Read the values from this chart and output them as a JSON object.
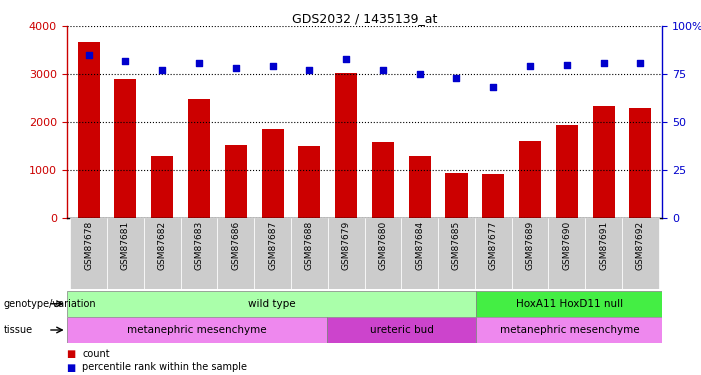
{
  "title": "GDS2032 / 1435139_at",
  "samples": [
    "GSM87678",
    "GSM87681",
    "GSM87682",
    "GSM87683",
    "GSM87686",
    "GSM87687",
    "GSM87688",
    "GSM87679",
    "GSM87680",
    "GSM87684",
    "GSM87685",
    "GSM87677",
    "GSM87689",
    "GSM87690",
    "GSM87691",
    "GSM87692"
  ],
  "counts": [
    3680,
    2900,
    1290,
    2480,
    1520,
    1850,
    1500,
    3020,
    1580,
    1290,
    940,
    900,
    1610,
    1940,
    2340,
    2290
  ],
  "percentile_ranks": [
    85,
    82,
    77,
    81,
    78,
    79,
    77,
    83,
    77,
    75,
    73,
    68,
    79,
    80,
    81,
    81
  ],
  "ylim_left": [
    0,
    4000
  ],
  "ylim_right": [
    0,
    100
  ],
  "bar_color": "#cc0000",
  "dot_color": "#0000cc",
  "bar_width": 0.6,
  "genotype_groups": [
    {
      "label": "wild type",
      "start": 0,
      "end": 11,
      "color": "#aaffaa"
    },
    {
      "label": "HoxA11 HoxD11 null",
      "start": 11,
      "end": 16,
      "color": "#44ee44"
    }
  ],
  "tissue_groups": [
    {
      "label": "metanephric mesenchyme",
      "start": 0,
      "end": 7,
      "color": "#ee88ee"
    },
    {
      "label": "ureteric bud",
      "start": 7,
      "end": 11,
      "color": "#cc44cc"
    },
    {
      "label": "metanephric mesenchyme",
      "start": 11,
      "end": 16,
      "color": "#ee88ee"
    }
  ],
  "legend_items": [
    {
      "label": "count",
      "color": "#cc0000"
    },
    {
      "label": "percentile rank within the sample",
      "color": "#0000cc"
    }
  ],
  "left_yticks": [
    0,
    1000,
    2000,
    3000,
    4000
  ],
  "right_yticks": [
    0,
    25,
    50,
    75,
    100
  ],
  "right_yticklabels": [
    "0",
    "25",
    "50",
    "75",
    "100%"
  ],
  "xtick_bg": "#cccccc"
}
